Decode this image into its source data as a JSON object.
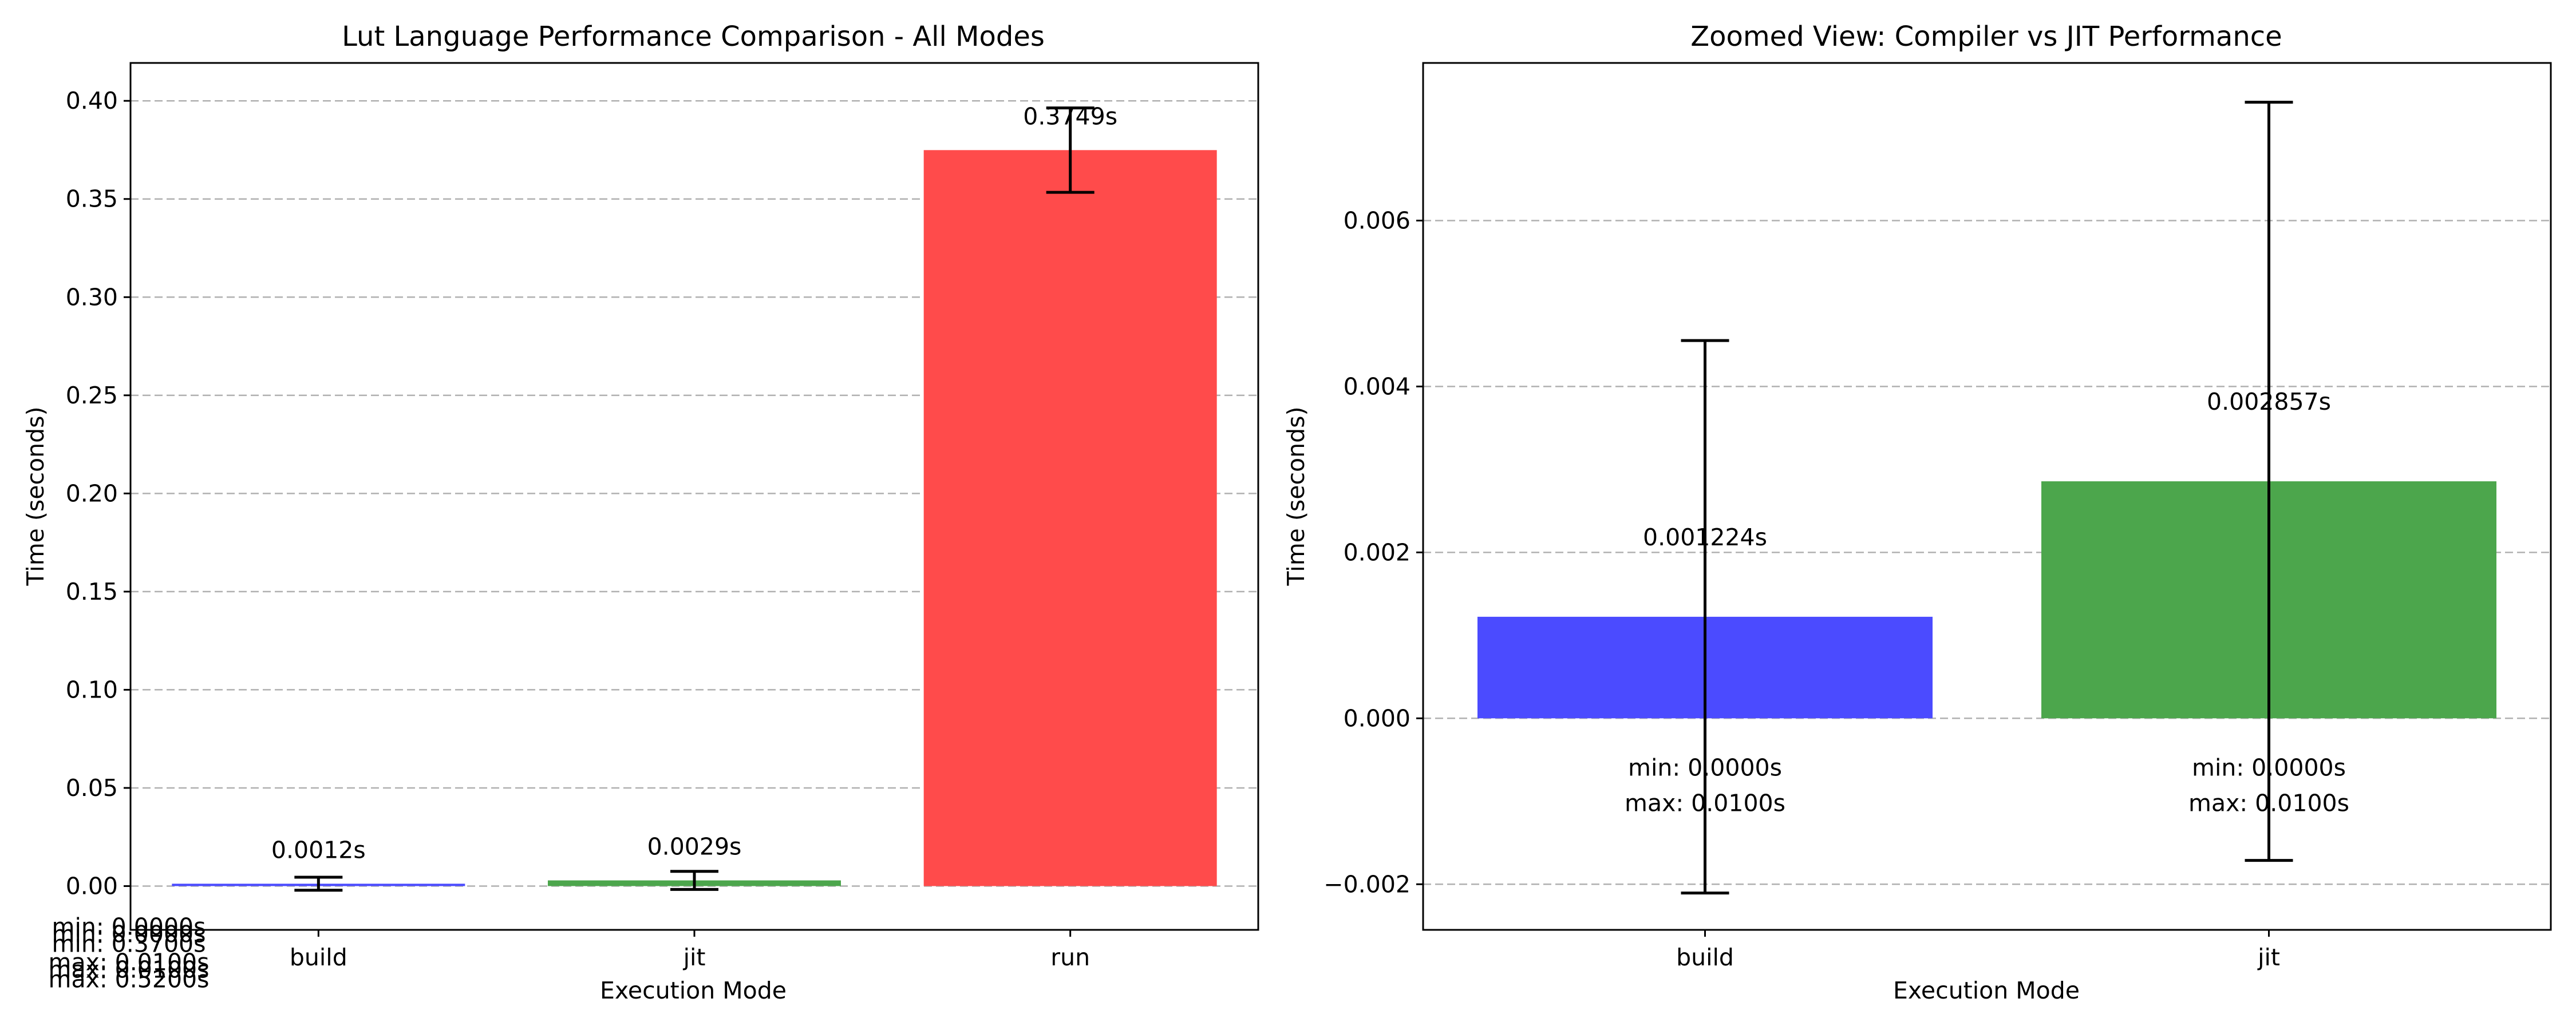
{
  "chart_data": [
    {
      "type": "bar",
      "title": "Lut Language Performance Comparison - All Modes",
      "xlabel": "Execution Mode",
      "ylabel": "Time (seconds)",
      "categories": [
        "build",
        "jit",
        "run"
      ],
      "values": [
        0.0012,
        0.0029,
        0.3749
      ],
      "errors": [
        0.0033,
        0.0046,
        0.0215
      ],
      "value_labels": [
        "0.0012s",
        "0.0029s",
        "0.3749s"
      ],
      "min_labels": [
        "min: 0.0000s",
        "min: 0.0000s",
        "min: 0.3700s"
      ],
      "max_labels": [
        "max: 0.0100s",
        "max: 0.0100s",
        "max: 0.5200s"
      ],
      "colors": [
        "#4b4bff",
        "#4ca64c",
        "#ff4b4b"
      ],
      "ylim": [
        -0.0223,
        0.4193
      ],
      "yticks": [
        0.0,
        0.05,
        0.1,
        0.15,
        0.2,
        0.25,
        0.3,
        0.35,
        0.4
      ],
      "ytick_labels": [
        "0.00",
        "0.05",
        "0.10",
        "0.15",
        "0.20",
        "0.25",
        "0.30",
        "0.35",
        "0.40"
      ],
      "grid": "y-dashed"
    },
    {
      "type": "bar",
      "title": "Zoomed View: Compiler vs JIT Performance",
      "xlabel": "Execution Mode",
      "ylabel": "Time (seconds)",
      "categories": [
        "build",
        "jit"
      ],
      "values": [
        0.001224,
        0.002857
      ],
      "errors": [
        0.00333,
        0.00457
      ],
      "value_labels": [
        "0.001224s",
        "0.002857s"
      ],
      "min_labels": [
        "min: 0.0000s",
        "min: 0.0000s"
      ],
      "max_labels": [
        "max: 0.0100s",
        "max: 0.0100s"
      ],
      "colors": [
        "#4b4bff",
        "#4ca64c"
      ],
      "ylim": [
        -0.00255,
        0.0079
      ],
      "yticks": [
        -0.002,
        0.0,
        0.002,
        0.004,
        0.006
      ],
      "ytick_labels": [
        "−0.002",
        "0.000",
        "0.002",
        "0.004",
        "0.006"
      ],
      "grid": "y-dashed"
    }
  ]
}
